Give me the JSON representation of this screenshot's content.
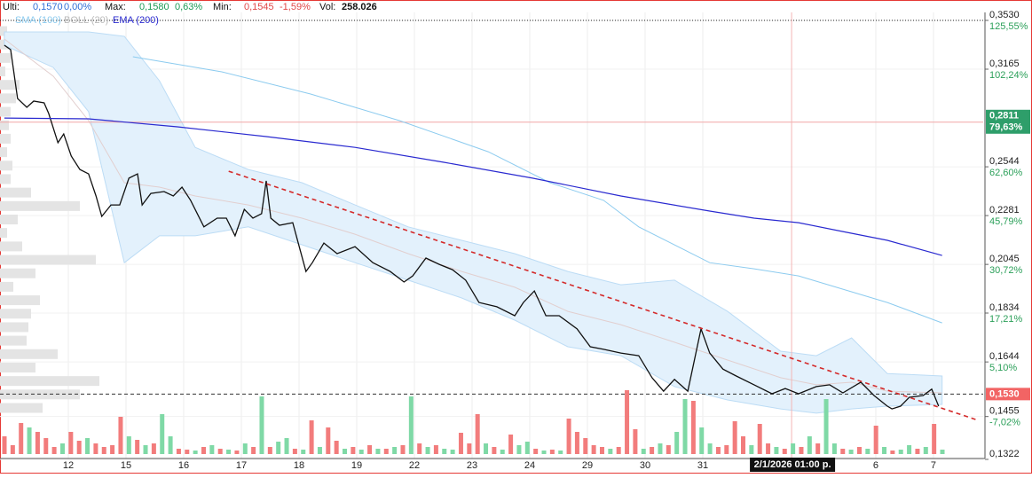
{
  "header": {
    "last_label": "Ulti:",
    "last": "0,1570",
    "last_change": "0,00%",
    "max_label": "Max:",
    "max": "0,1580",
    "max_change": "0,63%",
    "min_label": "Min:",
    "min": "0,1545",
    "min_change": "-1,59%",
    "vol_label": "Vol:",
    "vol": "258.026"
  },
  "chart_data": {
    "type": "line",
    "log": true,
    "grid": true,
    "ylim": [
      0.1322,
      0.353
    ],
    "yticks": [
      {
        "value": 0.353,
        "label": "0,3530",
        "sub": "125,55%"
      },
      {
        "value": 0.3165,
        "label": "0,3165",
        "sub": "102,24%"
      },
      {
        "value": 0.2544,
        "label": "0,2544",
        "sub": "62,60%"
      },
      {
        "value": 0.2281,
        "label": "0,2281",
        "sub": "45,79%"
      },
      {
        "value": 0.2045,
        "label": "0,2045",
        "sub": "30,72%"
      },
      {
        "value": 0.1834,
        "label": "0,1834",
        "sub": "17,21%"
      },
      {
        "value": 0.1644,
        "label": "0,1644",
        "sub": "5,10%"
      },
      {
        "value": 0.1455,
        "label": "0,1455",
        "sub": "-7,02%"
      },
      {
        "value": 0.1322,
        "label": "0,1322"
      }
    ],
    "xlim": [
      -1.185,
      15.862
    ],
    "xticks": [
      {
        "value": 0,
        "label": "12"
      },
      {
        "value": 1,
        "label": "15"
      },
      {
        "value": 2,
        "label": "16"
      },
      {
        "value": 3,
        "label": "17"
      },
      {
        "value": 4,
        "label": "18"
      },
      {
        "value": 5,
        "label": "19"
      },
      {
        "value": 6,
        "label": "22"
      },
      {
        "value": 7,
        "label": "23"
      },
      {
        "value": 8,
        "label": "24"
      },
      {
        "value": 9,
        "label": "29"
      },
      {
        "value": 10,
        "label": "30"
      },
      {
        "value": 11,
        "label": "31"
      },
      {
        "value": 14,
        "label": "6"
      },
      {
        "value": 15,
        "label": "7"
      }
    ],
    "band": {
      "name": "BOLL (20)",
      "color": "#bcdcf5",
      "fill": "#e3f1fc",
      "middle_color": "#e2cfcf",
      "x": [
        -1.11,
        -0.26,
        0.35,
        0.97,
        1.58,
        2.2,
        3.12,
        4.05,
        4.97,
        5.89,
        6.82,
        7.74,
        8.66,
        9.58,
        10.51,
        11.43,
        12.35,
        12.97,
        13.58,
        14.2,
        15.15
      ],
      "upper": [
        0.344,
        0.344,
        0.344,
        0.3406,
        0.3084,
        0.2657,
        0.2529,
        0.2455,
        0.2336,
        0.2224,
        0.2158,
        0.2095,
        0.2013,
        0.1954,
        0.1974,
        0.1841,
        0.1684,
        0.1667,
        0.1735,
        0.1602,
        0.1593
      ],
      "lower": [
        0.3339,
        0.3177,
        0.2878,
        0.2053,
        0.218,
        0.218,
        0.2224,
        0.2137,
        0.2053,
        0.1974,
        0.1897,
        0.1805,
        0.1701,
        0.1667,
        0.1556,
        0.151,
        0.148,
        0.1466,
        0.148,
        0.1489,
        0.1495
      ],
      "middle": [
        0.3386,
        0.3115,
        0.2821,
        0.2455,
        0.2431,
        0.2383,
        0.2336,
        0.2268,
        0.2188,
        0.2095,
        0.2013,
        0.1943,
        0.1841,
        0.1787,
        0.1718,
        0.1651,
        0.1587,
        0.1562,
        0.1571,
        0.154,
        0.1534
      ]
    },
    "series": [
      {
        "color": "#111111",
        "width": 1.3,
        "x": [
          -1.11,
          -1.0,
          -0.88,
          -0.72,
          -0.6,
          -0.42,
          -0.34,
          -0.18,
          -0.08,
          0.05,
          0.2,
          0.35,
          0.48,
          0.58,
          0.74,
          0.89,
          1.05,
          1.2,
          1.28,
          1.43,
          1.66,
          1.82,
          1.97,
          2.12,
          2.35,
          2.58,
          2.74,
          2.89,
          3.05,
          3.2,
          3.35,
          3.43,
          3.51,
          3.66,
          3.89,
          4.12,
          4.23,
          4.43,
          4.66,
          4.97,
          5.28,
          5.58,
          5.82,
          5.97,
          6.2,
          6.43,
          6.66,
          6.89,
          7.12,
          7.43,
          7.74,
          7.89,
          8.08,
          8.28,
          8.51,
          8.82,
          9.05,
          9.28,
          9.58,
          9.89,
          10.12,
          10.32,
          10.51,
          10.74,
          10.97,
          11.12,
          11.35,
          11.58,
          11.89,
          12.2,
          12.43,
          12.66,
          12.97,
          13.2,
          13.43,
          13.74,
          13.97,
          14.2,
          14.28,
          14.43,
          14.58,
          14.82,
          14.97,
          15.09
        ],
        "values": [
          0.3339,
          0.3306,
          0.2964,
          0.2906,
          0.2947,
          0.2935,
          0.2866,
          0.2685,
          0.2738,
          0.2606,
          0.2529,
          0.2504,
          0.2383,
          0.2277,
          0.2336,
          0.2336,
          0.248,
          0.2504,
          0.2336,
          0.2397,
          0.2407,
          0.2383,
          0.2431,
          0.236,
          0.2224,
          0.2268,
          0.2268,
          0.218,
          0.2313,
          0.2268,
          0.2291,
          0.2465,
          0.2268,
          0.2232,
          0.2245,
          0.2013,
          0.2053,
          0.2145,
          0.2095,
          0.2128,
          0.2053,
          0.2013,
          0.1966,
          0.1993,
          0.2074,
          0.2045,
          0.2021,
          0.1974,
          0.1878,
          0.186,
          0.1823,
          0.1878,
          0.1927,
          0.1823,
          0.1823,
          0.177,
          0.1701,
          0.1691,
          0.1677,
          0.1667,
          0.1587,
          0.154,
          0.1581,
          0.154,
          0.177,
          0.1677,
          0.1618,
          0.1593,
          0.1562,
          0.1531,
          0.1549,
          0.1531,
          0.1556,
          0.1562,
          0.1534,
          0.1571,
          0.1525,
          0.1489,
          0.148,
          0.1489,
          0.1519,
          0.1525,
          0.1547,
          0.1489
        ]
      },
      {
        "name": "SMA (100)",
        "color": "#8ccbef",
        "width": 1,
        "x": [
          1.12,
          2.66,
          4.2,
          5.74,
          7.28,
          8.35,
          9.28,
          9.89,
          11.12,
          11.89,
          12.66,
          14.2,
          15.15
        ],
        "values": [
          0.3254,
          0.3146,
          0.2994,
          0.2821,
          0.2631,
          0.2455,
          0.236,
          0.2224,
          0.2053,
          0.2025,
          0.1993,
          0.1878,
          0.1794
        ]
      },
      {
        "name": "EMA (200)",
        "color": "#2a2ad0",
        "width": 1.2,
        "x": [
          -1.11,
          0.35,
          1.89,
          3.43,
          4.97,
          6.51,
          8.05,
          9.58,
          11.12,
          11.89,
          12.66,
          13.43,
          14.2,
          15.15
        ],
        "values": [
          0.2837,
          0.2832,
          0.2782,
          0.2722,
          0.2657,
          0.257,
          0.248,
          0.2383,
          0.2304,
          0.2268,
          0.2245,
          0.2201,
          0.2158,
          0.2086
        ]
      }
    ],
    "trendline": {
      "color": "#d42a2a",
      "x": [
        2.78,
        15.74
      ],
      "values": [
        0.2519,
        0.1445
      ]
    },
    "price_lines": [
      {
        "value": 0.353,
        "color": "#222222",
        "style": "dotted"
      },
      {
        "value": 0.2811,
        "label": "0,2811",
        "sub": "79,63%",
        "color": "#f2a6a6",
        "style": "solid",
        "box": "#2e9e6a"
      },
      {
        "value": 0.153,
        "label": "0,1530",
        "color": "#333333",
        "style": "dashed",
        "box": "#f26464"
      }
    ],
    "crosshair": {
      "x": 12.54,
      "label": "2/1/2026 01:00 p.",
      "color": "#f4b4b4"
    },
    "volume": {
      "up_color": "#7fd9a6",
      "down_color": "#f27c7c",
      "vlim": [
        0,
        100
      ],
      "values": [
        20,
        10,
        35,
        30,
        25,
        18,
        8,
        12,
        25,
        15,
        18,
        12,
        8,
        10,
        42,
        20,
        16,
        10,
        12,
        45,
        20,
        6,
        5,
        4,
        8,
        10,
        6,
        5,
        4,
        12,
        8,
        65,
        8,
        14,
        18,
        6,
        5,
        38,
        8,
        30,
        15,
        6,
        8,
        5,
        10,
        6,
        6,
        8,
        10,
        65,
        12,
        8,
        10,
        6,
        5,
        24,
        12,
        45,
        12,
        8,
        5,
        22,
        10,
        14,
        6,
        4,
        5,
        4,
        40,
        25,
        18,
        10,
        8,
        6,
        8,
        72,
        28,
        6,
        8,
        12,
        10,
        25,
        62,
        60,
        30,
        12,
        8,
        10,
        37,
        20,
        10,
        34,
        12,
        8,
        6,
        12,
        8,
        20,
        12,
        62,
        12,
        6,
        5,
        8,
        6,
        32,
        8,
        4,
        5,
        10,
        6,
        8,
        34,
        5
      ],
      "up": [
        false,
        false,
        false,
        true,
        false,
        false,
        false,
        true,
        false,
        false,
        true,
        false,
        false,
        false,
        false,
        true,
        false,
        true,
        false,
        true,
        true,
        false,
        false,
        true,
        false,
        true,
        false,
        true,
        false,
        true,
        false,
        true,
        false,
        true,
        true,
        false,
        true,
        false,
        true,
        false,
        false,
        true,
        false,
        true,
        false,
        true,
        false,
        true,
        false,
        true,
        false,
        true,
        false,
        true,
        true,
        false,
        false,
        false,
        true,
        false,
        true,
        false,
        true,
        true,
        false,
        true,
        false,
        true,
        false,
        false,
        false,
        false,
        false,
        true,
        false,
        false,
        false,
        true,
        false,
        true,
        false,
        true,
        true,
        false,
        true,
        true,
        false,
        false,
        false,
        false,
        true,
        false,
        false,
        true,
        false,
        true,
        false,
        true,
        false,
        true,
        true,
        false,
        true,
        false,
        true,
        false,
        true,
        false,
        true,
        true,
        false,
        true,
        false,
        true
      ]
    },
    "volume_profile": {
      "color": "#e4e4e4",
      "plim": [
        0,
        120
      ],
      "values": [
        8,
        10,
        12,
        6,
        22,
        18,
        12,
        10,
        12,
        8,
        14,
        12,
        35,
        90,
        20,
        8,
        25,
        108,
        40,
        15,
        45,
        35,
        32,
        30,
        65,
        40,
        112,
        90,
        48
      ]
    }
  }
}
